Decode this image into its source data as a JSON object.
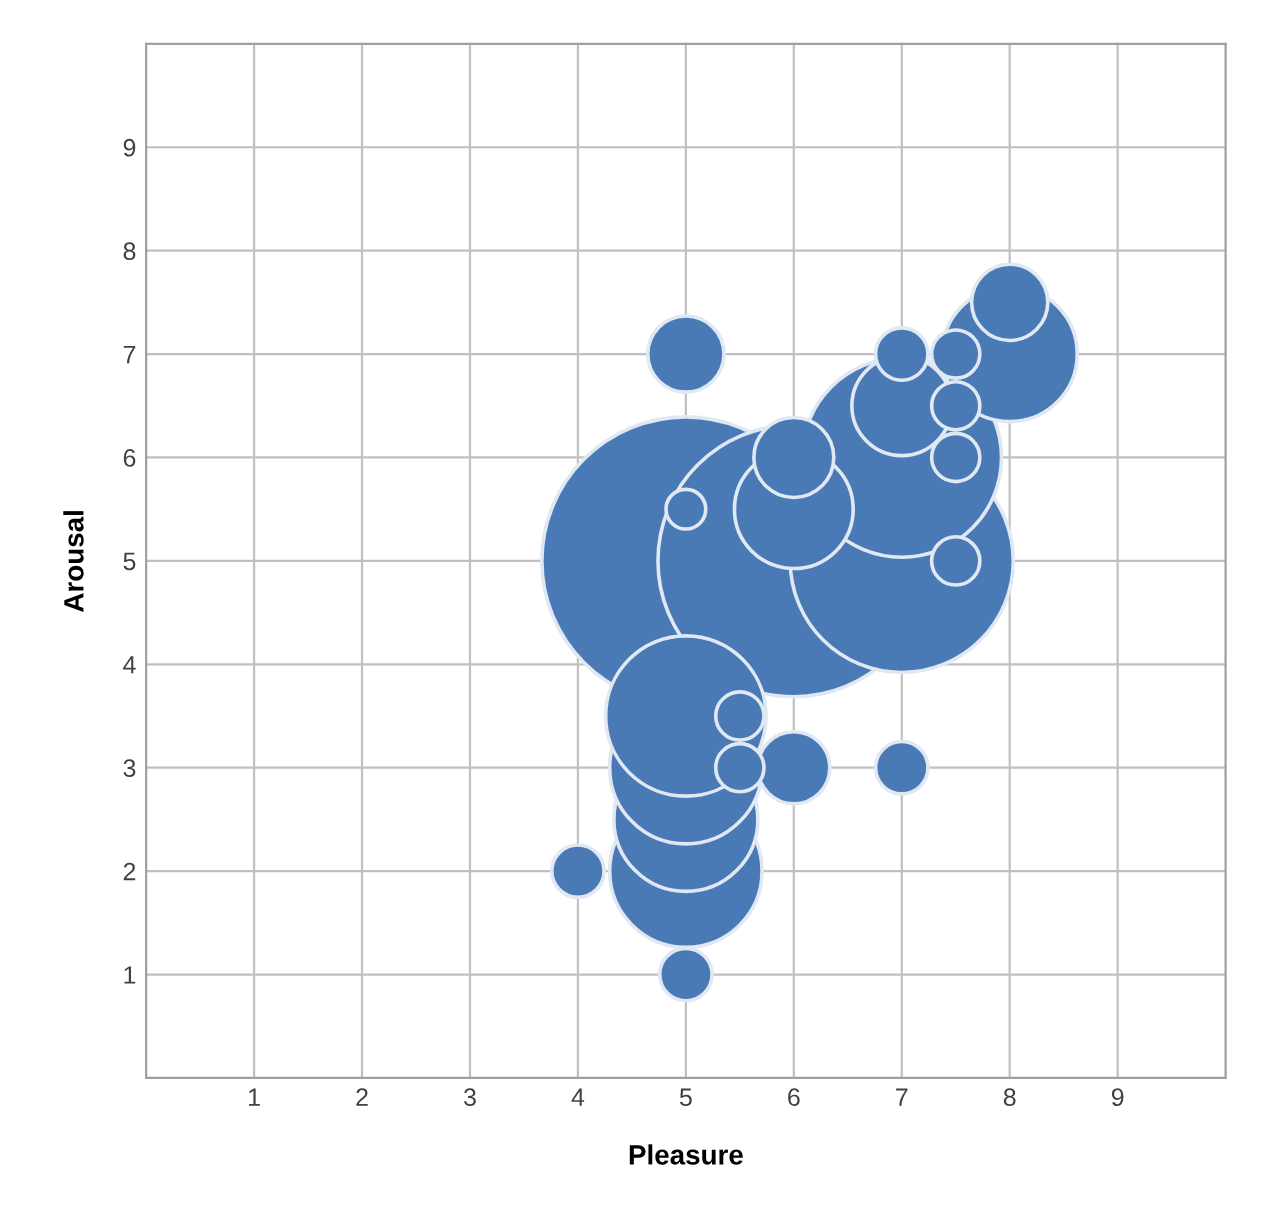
{
  "chart_data": {
    "type": "bubble",
    "xlabel": "Pleasure",
    "ylabel": "Arousal",
    "xlim": [
      0,
      10
    ],
    "ylim": [
      0,
      10
    ],
    "xticks": [
      1,
      2,
      3,
      4,
      5,
      6,
      7,
      8,
      9
    ],
    "yticks": [
      1,
      2,
      3,
      4,
      5,
      6,
      7,
      8,
      9
    ],
    "grid": true,
    "series": [
      {
        "color": "#4a7ab5",
        "x": [
          5,
          6,
          7,
          7,
          5,
          5,
          5,
          5,
          8,
          6,
          7,
          6,
          8,
          5,
          6,
          5,
          7,
          4,
          7,
          5.5,
          5.5,
          7.5,
          7.5,
          7.5,
          7.5,
          5
        ],
        "values": [
          5,
          5,
          5,
          6,
          2,
          2.5,
          3,
          3.5,
          7,
          5.5,
          6.5,
          6,
          7.5,
          7,
          3,
          1,
          7,
          2,
          3,
          3.5,
          3,
          5,
          6,
          6.5,
          7,
          5.5
        ],
        "sizes": [
          1,
          0.89,
          0.6,
          0.48,
          0.28,
          0.25,
          0.28,
          0.31,
          0.22,
          0.17,
          0.12,
          0.077,
          0.07,
          0.07,
          0.0625,
          0.033,
          0.033,
          0.033,
          0.033,
          0.028,
          0.028,
          0.028,
          0.028,
          0.028,
          0.028,
          0.019
        ]
      }
    ]
  }
}
